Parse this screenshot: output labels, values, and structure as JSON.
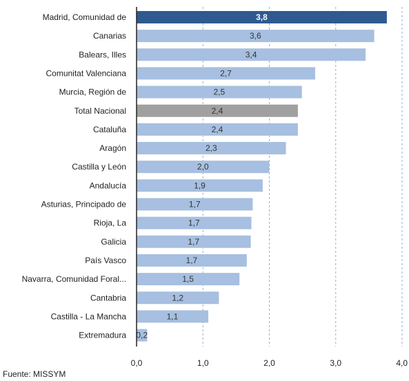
{
  "chart_data": {
    "type": "bar",
    "orientation": "horizontal",
    "categories": [
      "Madrid, Comunidad de",
      "Canarias",
      "Balears, Illes",
      "Comunitat Valenciana",
      "Murcia, Región de",
      "Total Nacional",
      "Cataluña",
      "Aragón",
      "Castilla y León",
      "Andalucía",
      "Asturias, Principado de",
      "Rioja, La",
      "Galicia",
      "País Vasco",
      "Navarra, Comunidad Foral...",
      "Cantabria",
      "Castilla - La Mancha",
      "Extremadura"
    ],
    "values": [
      3.77,
      3.58,
      3.45,
      2.69,
      2.49,
      2.43,
      2.43,
      2.25,
      2.0,
      1.9,
      1.75,
      1.73,
      1.72,
      1.66,
      1.55,
      1.24,
      1.08,
      0.16
    ],
    "data_labels": [
      "3,8",
      "3,6",
      "3,4",
      "2,7",
      "2,5",
      "2,4",
      "2,4",
      "2,3",
      "2,0",
      "1,9",
      "1,7",
      "1,7",
      "1,7",
      "1,7",
      "1,5",
      "1,2",
      "1,1",
      "0,2"
    ],
    "bar_styles": [
      "highlight",
      "normal",
      "normal",
      "normal",
      "normal",
      "total",
      "normal",
      "normal",
      "normal",
      "normal",
      "normal",
      "normal",
      "normal",
      "normal",
      "normal",
      "normal",
      "normal",
      "normal"
    ],
    "xlim": [
      0,
      4
    ],
    "xticks": [
      0,
      1,
      2,
      3,
      4
    ],
    "xtick_labels": [
      "0,0",
      "1,0",
      "2,0",
      "3,0",
      "4,0"
    ],
    "grid": "vertical dashed",
    "colors": {
      "normal": "#a7bfe0",
      "highlight": "#2e5a8f",
      "total": "#a0a0a0",
      "grid": "#8fb0d6"
    }
  },
  "source_text": "Fuente: MISSYM"
}
